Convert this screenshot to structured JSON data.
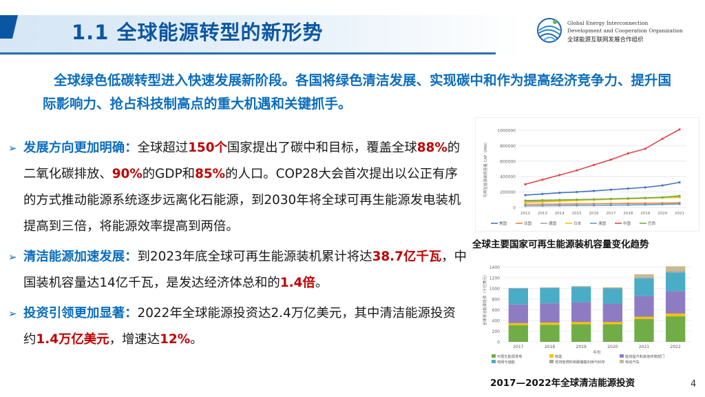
{
  "slide": {
    "title": "1.1 全球能源转型的新形势",
    "page_number": "4",
    "intro": "全球绿色低碳转型进入快速发展新阶段。各国将绿色清洁发展、实现碳中和作为提高经济竞争力、提升国际影响力、抢占科技制高点的重大机遇和关键抓手。"
  },
  "logo": {
    "en_line1": "Global Energy Interconnection",
    "en_line2": "Development and Cooperation Organization",
    "cn": "全球能源互联网发展合作组织"
  },
  "bullets": [
    {
      "lead": "发展方向更加明确：",
      "parts": [
        {
          "t": "全球超过",
          "em": false
        },
        {
          "t": "150个",
          "em": true
        },
        {
          "t": "国家提出了碳中和目标，覆盖全球",
          "em": false
        },
        {
          "t": "88%",
          "em": true
        },
        {
          "t": "的二氧化碳排放、",
          "em": false
        },
        {
          "t": "90%",
          "em": true
        },
        {
          "t": "的GDP和",
          "em": false
        },
        {
          "t": "85%",
          "em": true
        },
        {
          "t": "的人口。COP28大会首次提出以公正有序的方式推动能源系统逐步远离化石能源，到2030年将全球可再生能源发电装机提高到三倍，将能源效率提高到两倍。",
          "em": false
        }
      ]
    },
    {
      "lead": "清洁能源加速发展：",
      "parts": [
        {
          "t": "到2023年底全球可再生能源装机累计将达",
          "em": false
        },
        {
          "t": "38.7亿千瓦",
          "em": true
        },
        {
          "t": "，中国装机容量达14亿千瓦，是发达经济体总和的",
          "em": false
        },
        {
          "t": "1.4倍",
          "em": true
        },
        {
          "t": "。",
          "em": false
        }
      ]
    },
    {
      "lead": "投资引领更加显著：",
      "parts": [
        {
          "t": "2022年全球能源投资达2.4万亿美元，其中清洁能源投资约",
          "em": false
        },
        {
          "t": "1.4万亿美元",
          "em": true
        },
        {
          "t": "，增速达",
          "em": false
        },
        {
          "t": "12%",
          "em": true
        },
        {
          "t": "。",
          "em": false
        }
      ]
    }
  ],
  "charts_captions": {
    "line": "全球主要国家可再生能源装机容量变化趋势",
    "bar": "2017—2022年全球清洁能源投资"
  },
  "colors": {
    "title_blue": "#0b56a3",
    "text_blue": "#0b6dbd",
    "emphasis_red": "#c00000"
  },
  "chart_data": [
    {
      "type": "line",
      "ylabel": "可再生能源装机容量 CAP（MW）",
      "x": [
        "2012",
        "2013",
        "2014",
        "2015",
        "2016",
        "2017",
        "2018",
        "2019",
        "2020",
        "2021"
      ],
      "ylim": [
        0,
        1000000
      ],
      "yticks": [
        "0",
        "200000",
        "400000",
        "600000",
        "800000",
        "1000000"
      ],
      "series": [
        {
          "name": "美国",
          "color": "#4472c4",
          "values": [
            160000,
            175000,
            190000,
            200000,
            215000,
            230000,
            245000,
            260000,
            285000,
            325000
          ]
        },
        {
          "name": "法国",
          "color": "#ed7d31",
          "values": [
            40000,
            42000,
            44000,
            46000,
            48000,
            50000,
            52000,
            54000,
            57000,
            60000
          ]
        },
        {
          "name": "德国",
          "color": "#a5a5a5",
          "values": [
            75000,
            82000,
            88000,
            95000,
            102000,
            110000,
            115000,
            120000,
            130000,
            138000
          ]
        },
        {
          "name": "日本",
          "color": "#ffc000",
          "values": [
            65000,
            72000,
            82000,
            90000,
            98000,
            105000,
            112000,
            118000,
            125000,
            130000
          ]
        },
        {
          "name": "澳国",
          "color": "#5b9bd5",
          "values": [
            20000,
            22000,
            24000,
            26000,
            28000,
            30000,
            32000,
            35000,
            40000,
            45000
          ]
        },
        {
          "name": "中国",
          "color": "#e0454a",
          "values": [
            300000,
            360000,
            420000,
            480000,
            550000,
            620000,
            700000,
            760000,
            890000,
            1010000
          ]
        },
        {
          "name": "巴西",
          "color": "#70ad47",
          "values": [
            90000,
            94000,
            98000,
            102000,
            106000,
            112000,
            118000,
            124000,
            132000,
            150000
          ]
        }
      ]
    },
    {
      "type": "bar",
      "ylabel": "全球清洁能源投资（十亿美元）",
      "xlabel": "年份",
      "categories": [
        "2017",
        "2018",
        "2019",
        "2020",
        "2021",
        "2022"
      ],
      "ylim": [
        0,
        1600
      ],
      "yticks": [
        "0",
        "200",
        "400",
        "600",
        "800",
        "1000",
        "1200",
        "1400"
      ],
      "series": [
        {
          "name": "可再生能源发电",
          "color": "#70ad47",
          "values": [
            310,
            320,
            330,
            330,
            430,
            480
          ]
        },
        {
          "name": "核能",
          "color": "#ffc000",
          "values": [
            40,
            40,
            40,
            40,
            40,
            50
          ]
        },
        {
          "name": "能效提升和其他终端部门",
          "color": "#8e7cc3",
          "values": [
            350,
            360,
            370,
            340,
            390,
            420
          ]
        },
        {
          "name": "电网与储能",
          "color": "#4bacc6",
          "values": [
            300,
            290,
            290,
            290,
            330,
            350
          ]
        },
        {
          "name": "低排放燃料和碳捕集利用与封存",
          "color": "#a5a5a5",
          "values": [
            5,
            5,
            6,
            8,
            15,
            25
          ]
        },
        {
          "name": "电动汽车",
          "color": "#c9b98d",
          "values": [
            5,
            8,
            10,
            15,
            60,
            90
          ]
        }
      ]
    }
  ]
}
